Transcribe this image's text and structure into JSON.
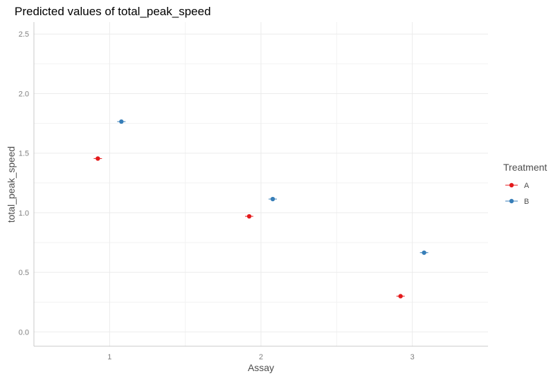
{
  "chart_data": {
    "type": "scatter",
    "title": "Predicted values of total_peak_speed",
    "xlabel": "Assay",
    "ylabel": "total_peak_speed",
    "categories": [
      "1",
      "2",
      "3"
    ],
    "ylim": [
      -0.12,
      2.6
    ],
    "yticks": [
      "0.0",
      "0.5",
      "1.0",
      "1.5",
      "2.0",
      "2.5"
    ],
    "grid": true,
    "legend": {
      "title": "Treatment",
      "position": "right"
    },
    "series": [
      {
        "name": "A",
        "color": "#e41a1c",
        "values": [
          1.455,
          0.97,
          0.3
        ]
      },
      {
        "name": "B",
        "color": "#377eb8",
        "values": [
          1.765,
          1.115,
          0.665
        ]
      }
    ]
  }
}
